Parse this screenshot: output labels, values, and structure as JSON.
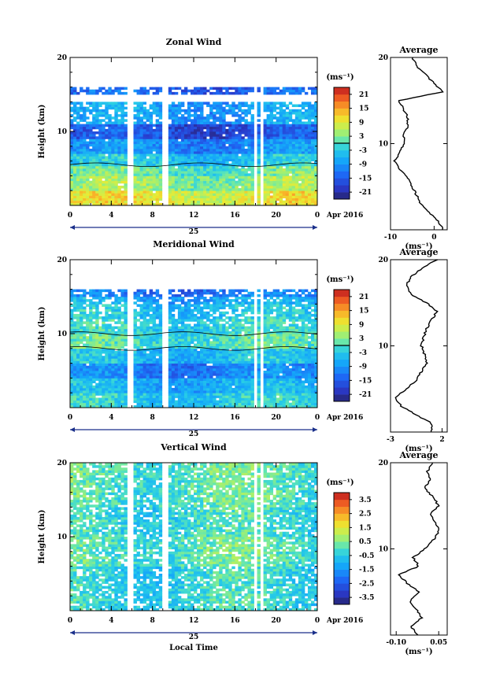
{
  "figure": {
    "date_label": "Apr 2016",
    "day_label": "25",
    "x_axis_title": "Local Time",
    "x_ticks": [
      "0",
      "4",
      "8",
      "12",
      "16",
      "20",
      "0"
    ],
    "y_axis_title": "Height (km)",
    "y_ticks": [
      "10",
      "20"
    ],
    "colorbar_unit": "(ms⁻¹)",
    "average_title": "Average",
    "average_unit": "(ms⁻¹)"
  },
  "chart_data": [
    {
      "type": "heatmap",
      "title": "Zonal Wind",
      "xlabel": "",
      "ylabel": "Height (km)",
      "xlim": [
        0,
        24
      ],
      "ylim": [
        0,
        20
      ],
      "colorbar": {
        "ticks": [
          "21",
          "15",
          "9",
          "3",
          "-3",
          "-9",
          "-15",
          "-21"
        ],
        "range": [
          -24,
          24
        ],
        "zero_contour": true
      },
      "field": [
        {
          "y": [
            0,
            2
          ],
          "value": 9
        },
        {
          "y": [
            2,
            4
          ],
          "value": 4
        },
        {
          "y": [
            4,
            5.5
          ],
          "value": 1
        },
        {
          "y": [
            5.5,
            7
          ],
          "value": -4
        },
        {
          "y": [
            7,
            9
          ],
          "value": -10
        },
        {
          "y": [
            9,
            11
          ],
          "value": -16
        },
        {
          "y": [
            11,
            14
          ],
          "value": -8
        },
        {
          "y": [
            15,
            16
          ],
          "value": -14
        }
      ],
      "average_profile": {
        "xlim": [
          -10,
          3
        ],
        "xticks": [
          "-10",
          "0"
        ],
        "yticks": [
          "10",
          "20"
        ],
        "y": [
          0,
          1,
          2,
          3,
          4,
          5,
          6,
          7,
          8,
          9,
          10,
          11,
          12,
          13,
          14,
          15,
          16,
          17,
          18,
          19,
          20
        ],
        "x": [
          2,
          1,
          -1,
          -3,
          -4,
          -5,
          -6,
          -8,
          -9,
          -8,
          -7,
          -7,
          -6,
          -6,
          -7,
          -8,
          2,
          0,
          -2,
          -4,
          -5
        ]
      }
    },
    {
      "type": "heatmap",
      "title": "Meridional Wind",
      "xlabel": "",
      "ylabel": "Height (km)",
      "xlim": [
        0,
        24
      ],
      "ylim": [
        0,
        20
      ],
      "colorbar": {
        "ticks": [
          "21",
          "15",
          "9",
          "3",
          "-3",
          "-9",
          "-15",
          "-21"
        ],
        "range": [
          -24,
          24
        ],
        "zero_contour": true
      },
      "field": [
        {
          "y": [
            0,
            2
          ],
          "value": -3
        },
        {
          "y": [
            2,
            4
          ],
          "value": -6
        },
        {
          "y": [
            4,
            6
          ],
          "value": -11
        },
        {
          "y": [
            6,
            8
          ],
          "value": -5
        },
        {
          "y": [
            8,
            10
          ],
          "value": 0
        },
        {
          "y": [
            10,
            12
          ],
          "value": -2
        },
        {
          "y": [
            12,
            14
          ],
          "value": -4
        },
        {
          "y": [
            14,
            15
          ],
          "value": -7
        },
        {
          "y": [
            15,
            16
          ],
          "value": -12
        }
      ],
      "average_profile": {
        "xlim": [
          -3,
          2.5
        ],
        "xticks": [
          "-3",
          "2"
        ],
        "yticks": [
          "10",
          "20"
        ],
        "y": [
          0,
          1,
          2,
          3,
          4,
          5,
          6,
          7,
          8,
          9,
          10,
          11,
          12,
          13,
          14,
          15,
          16,
          17,
          18,
          19,
          20
        ],
        "x": [
          1,
          1,
          -0.5,
          -2,
          -2.5,
          -1.5,
          -0.5,
          0,
          0.5,
          0.3,
          0,
          0.2,
          0.5,
          1,
          1.5,
          0.5,
          -1,
          -1.5,
          -1,
          0,
          1.5
        ]
      }
    },
    {
      "type": "heatmap",
      "title": "Vertical Wind",
      "xlabel": "Local Time",
      "ylabel": "Height (km)",
      "xlim": [
        0,
        24
      ],
      "ylim": [
        0,
        20
      ],
      "colorbar": {
        "ticks": [
          "3.5",
          "2.5",
          "1.5",
          "0.5",
          "-0.5",
          "-1.5",
          "-2.5",
          "-3.5"
        ],
        "range": [
          -4,
          4
        ],
        "zero_contour": false
      },
      "field": [
        {
          "y": [
            0,
            6
          ],
          "value": -0.3
        },
        {
          "y": [
            6,
            10
          ],
          "value": 0.1
        },
        {
          "y": [
            10,
            14
          ],
          "value": -0.2
        },
        {
          "y": [
            14,
            16
          ],
          "value": 0.05
        },
        {
          "y": [
            16,
            20
          ],
          "value": 0.1
        }
      ],
      "average_profile": {
        "xlim": [
          -0.12,
          0.08
        ],
        "xticks": [
          "-0.10",
          "0.05"
        ],
        "yticks": [
          "10",
          "20"
        ],
        "y": [
          0,
          1,
          2,
          3,
          4,
          5,
          6,
          7,
          8,
          9,
          10,
          11,
          12,
          13,
          14,
          15,
          16,
          17,
          18,
          19,
          20
        ],
        "x": [
          -0.02,
          -0.05,
          -0.01,
          -0.03,
          -0.05,
          -0.02,
          -0.06,
          -0.09,
          -0.02,
          -0.04,
          0.0,
          0.03,
          0.05,
          0.04,
          0.02,
          0.05,
          0.03,
          0.0,
          0.02,
          0.01,
          0.03
        ]
      }
    }
  ]
}
